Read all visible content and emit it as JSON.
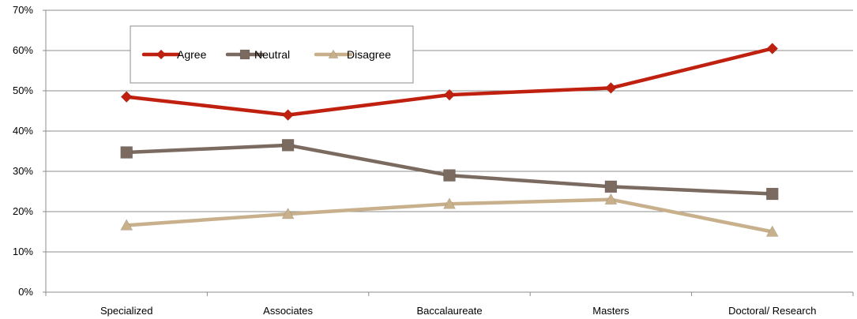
{
  "chart_data": {
    "type": "line",
    "categories": [
      "Specialized",
      "Associates",
      "Baccalaureate",
      "Masters",
      "Doctoral/ Research"
    ],
    "series": [
      {
        "name": "Agree",
        "values": [
          48.5,
          44.0,
          49.0,
          50.7,
          60.5
        ],
        "color": "#c0200f",
        "marker": "diamond"
      },
      {
        "name": "Neutral",
        "values": [
          34.7,
          36.5,
          29.0,
          26.2,
          24.4
        ],
        "color": "#7b6a60",
        "marker": "square"
      },
      {
        "name": "Disagree",
        "values": [
          16.6,
          19.4,
          21.9,
          23.0,
          15.0
        ],
        "color": "#c7b08b",
        "marker": "triangle"
      }
    ],
    "ylim": [
      0,
      70
    ],
    "yticks": [
      0,
      10,
      20,
      30,
      40,
      50,
      60,
      70
    ],
    "ytick_labels": [
      "0%",
      "10%",
      "20%",
      "30%",
      "40%",
      "50%",
      "60%",
      "70%"
    ],
    "grid": true,
    "legend_position": "top-left",
    "title": "",
    "xlabel": "",
    "ylabel": ""
  }
}
